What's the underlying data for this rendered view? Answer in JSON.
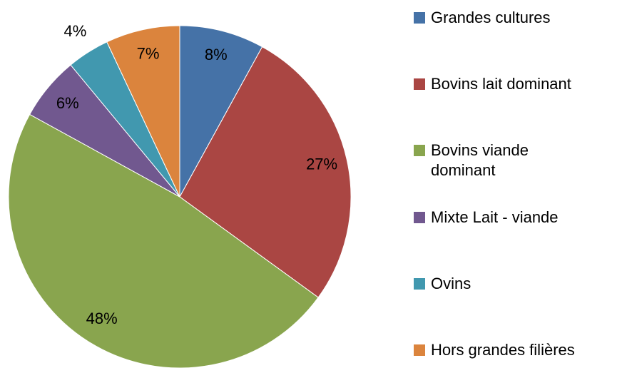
{
  "chart_data": {
    "type": "pie",
    "categories": [
      "Grandes cultures",
      "Bovins lait dominant",
      "Bovins viande dominant",
      "Mixte Lait - viande",
      "Ovins",
      "Hors grandes filières"
    ],
    "values": [
      8,
      27,
      48,
      6,
      4,
      7
    ],
    "value_labels": [
      "8%",
      "27%",
      "48%",
      "6%",
      "4%",
      "7%"
    ],
    "colors": [
      "#4572a7",
      "#aa4643",
      "#89a54e",
      "#71588f",
      "#4198af",
      "#db843d"
    ],
    "legend": "right"
  }
}
